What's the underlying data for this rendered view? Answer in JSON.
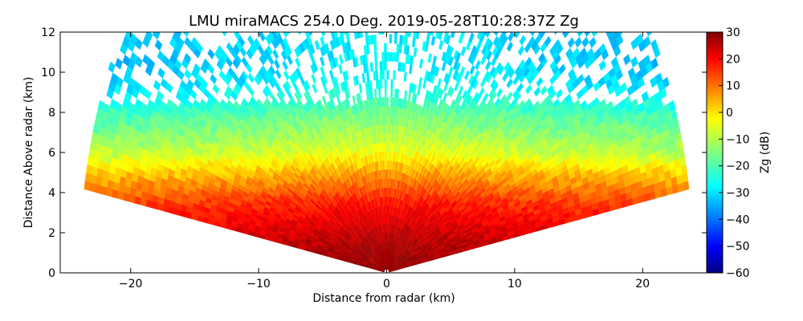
{
  "chart_data": {
    "type": "heatmap",
    "title": "LMU miraMACS 254.0 Deg. 2019-05-28T10:28:37Z  Zg",
    "xlabel": "Distance from radar (km)",
    "ylabel": "Distance Above radar  (km)",
    "colorbar_label": "Zg (dB)",
    "xlim": [
      -25.5,
      25
    ],
    "ylim": [
      0,
      12
    ],
    "clim": [
      -60,
      30
    ],
    "x_ticks": [
      -20,
      -10,
      0,
      10,
      20
    ],
    "x_tick_labels": [
      "−20",
      "−10",
      "0",
      "10",
      "20"
    ],
    "y_ticks": [
      0,
      2,
      4,
      6,
      8,
      10,
      12
    ],
    "y_tick_labels": [
      "0",
      "2",
      "4",
      "6",
      "8",
      "10",
      "12"
    ],
    "colorbar_ticks": [
      30,
      20,
      10,
      0,
      -10,
      -20,
      -30,
      -40,
      -50,
      -60
    ],
    "colorbar_tick_labels": [
      "30",
      "20",
      "10",
      "0",
      "−10",
      "−20",
      "−30",
      "−40",
      "−50",
      "−60"
    ],
    "colormap": "jet",
    "scan_elevation_range_deg": [
      10,
      170
    ],
    "max_range_km": 24,
    "reflectivity_profile": {
      "height_km": [
        0.2,
        1.0,
        1.8,
        2.5,
        3.2,
        3.8,
        4.5,
        5.2,
        6.0,
        7.0,
        7.8,
        8.5,
        9.5,
        10.5,
        12.0
      ],
      "zg_db": [
        25,
        24,
        22,
        19,
        16,
        12,
        6,
        0,
        -8,
        -14,
        -18,
        -23,
        -28,
        -30,
        -30
      ]
    }
  }
}
